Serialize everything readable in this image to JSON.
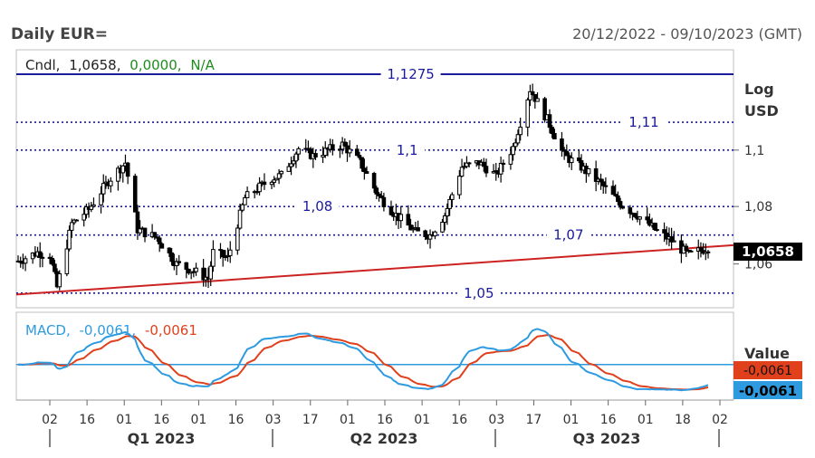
{
  "header": {
    "title": "Daily EUR=",
    "date_range": "20/12/2022 - 09/10/2023 (GMT)"
  },
  "price_panel": {
    "legend": {
      "label": "Cndl,",
      "close": "1,0658,",
      "change": "0,0000,",
      "pct": "N/A"
    },
    "scale_labels": [
      "Log",
      "USD"
    ],
    "current_price_label": "1,0658",
    "y_ticks": [
      {
        "value": 1.1,
        "label": "1,1"
      },
      {
        "value": 1.08,
        "label": "1,08"
      },
      {
        "value": 1.06,
        "label": "1,06"
      }
    ],
    "levels": [
      {
        "value": 1.1275,
        "label": "1,1275",
        "style": "solid",
        "label_x": 0.55
      },
      {
        "value": 1.11,
        "label": "1,11",
        "style": "dotted",
        "label_x": 0.875
      },
      {
        "value": 1.1,
        "label": "1,1",
        "style": "dotted",
        "label_x": 0.545
      },
      {
        "value": 1.08,
        "label": "1,08",
        "style": "dotted",
        "label_x": 0.42
      },
      {
        "value": 1.07,
        "label": "1,07",
        "style": "dotted",
        "label_x": 0.77
      },
      {
        "value": 1.05,
        "label": "1,05",
        "style": "dotted",
        "label_x": 0.645
      }
    ],
    "trendline": {
      "start": 1.0495,
      "end": 1.0665
    }
  },
  "macd_panel": {
    "legend": {
      "label": "MACD,",
      "macd": "-0,0061,",
      "signal": "-0,0061"
    },
    "value_label": "Value",
    "signal_value": "-0,0061",
    "macd_value": "-0,0061"
  },
  "x_axis": {
    "tick_labels": [
      "02",
      "16",
      "01",
      "16",
      "01",
      "16",
      "03",
      "17",
      "01",
      "16",
      "01",
      "16",
      "03",
      "17",
      "01",
      "16",
      "01",
      "18",
      "02"
    ],
    "quarters": [
      "Q1 2023",
      "Q2 2023",
      "Q3 2023"
    ]
  },
  "colors": {
    "candle": "#000000",
    "level_line": "#1a1a9c",
    "trendline": "#cc2222",
    "macd_line": "#2e9be0",
    "signal_line": "#e0401c",
    "macd_zero": "#2e9be0",
    "current_price_bg": "#000000",
    "signal_bg": "#e0401c",
    "macd_bg": "#2e9be0"
  },
  "chart_data": {
    "type": "candlestick",
    "title": "Daily EUR=",
    "y_scale": "log",
    "y_unit": "USD",
    "ylim": [
      1.045,
      1.1365
    ],
    "close_path": [
      [
        "2022-12-20",
        1.061
      ],
      [
        "2022-12-28",
        1.064
      ],
      [
        "2023-01-02",
        1.063
      ],
      [
        "2023-01-05",
        1.052
      ],
      [
        "2023-01-11",
        1.074
      ],
      [
        "2023-01-18",
        1.079
      ],
      [
        "2023-01-26",
        1.089
      ],
      [
        "2023-02-02",
        1.0955
      ],
      [
        "2023-02-07",
        1.072
      ],
      [
        "2023-02-15",
        1.069
      ],
      [
        "2023-02-23",
        1.06
      ],
      [
        "2023-03-01",
        1.058
      ],
      [
        "2023-03-08",
        1.055
      ],
      [
        "2023-03-10",
        1.064
      ],
      [
        "2023-03-16",
        1.062
      ],
      [
        "2023-03-23",
        1.083
      ],
      [
        "2023-04-03",
        1.09
      ],
      [
        "2023-04-07",
        1.091
      ],
      [
        "2023-04-14",
        1.1005
      ],
      [
        "2023-04-20",
        1.098
      ],
      [
        "2023-05-02",
        1.102
      ],
      [
        "2023-05-09",
        1.096
      ],
      [
        "2023-05-17",
        1.0835
      ],
      [
        "2023-05-24",
        1.077
      ],
      [
        "2023-06-01",
        1.071
      ],
      [
        "2023-06-07",
        1.07
      ],
      [
        "2023-06-13",
        1.077
      ],
      [
        "2023-06-20",
        1.094
      ],
      [
        "2023-06-27",
        1.0955
      ],
      [
        "2023-07-04",
        1.091
      ],
      [
        "2023-07-11",
        1.101
      ],
      [
        "2023-07-18",
        1.122
      ],
      [
        "2023-07-25",
        1.111
      ],
      [
        "2023-08-01",
        1.098
      ],
      [
        "2023-08-08",
        1.094
      ],
      [
        "2023-08-16",
        1.088
      ],
      [
        "2023-08-24",
        1.081
      ],
      [
        "2023-08-31",
        1.077
      ],
      [
        "2023-09-07",
        1.072
      ],
      [
        "2023-09-14",
        1.068
      ],
      [
        "2023-09-21",
        1.063
      ],
      [
        "2023-09-29",
        1.0658
      ]
    ],
    "indicators": [
      {
        "name": "MACD",
        "value": -0.0061
      },
      {
        "name": "Signal",
        "value": -0.0061
      }
    ],
    "horizontal_levels": [
      1.1275,
      1.11,
      1.1,
      1.08,
      1.07,
      1.05
    ],
    "last_close": 1.0658
  }
}
